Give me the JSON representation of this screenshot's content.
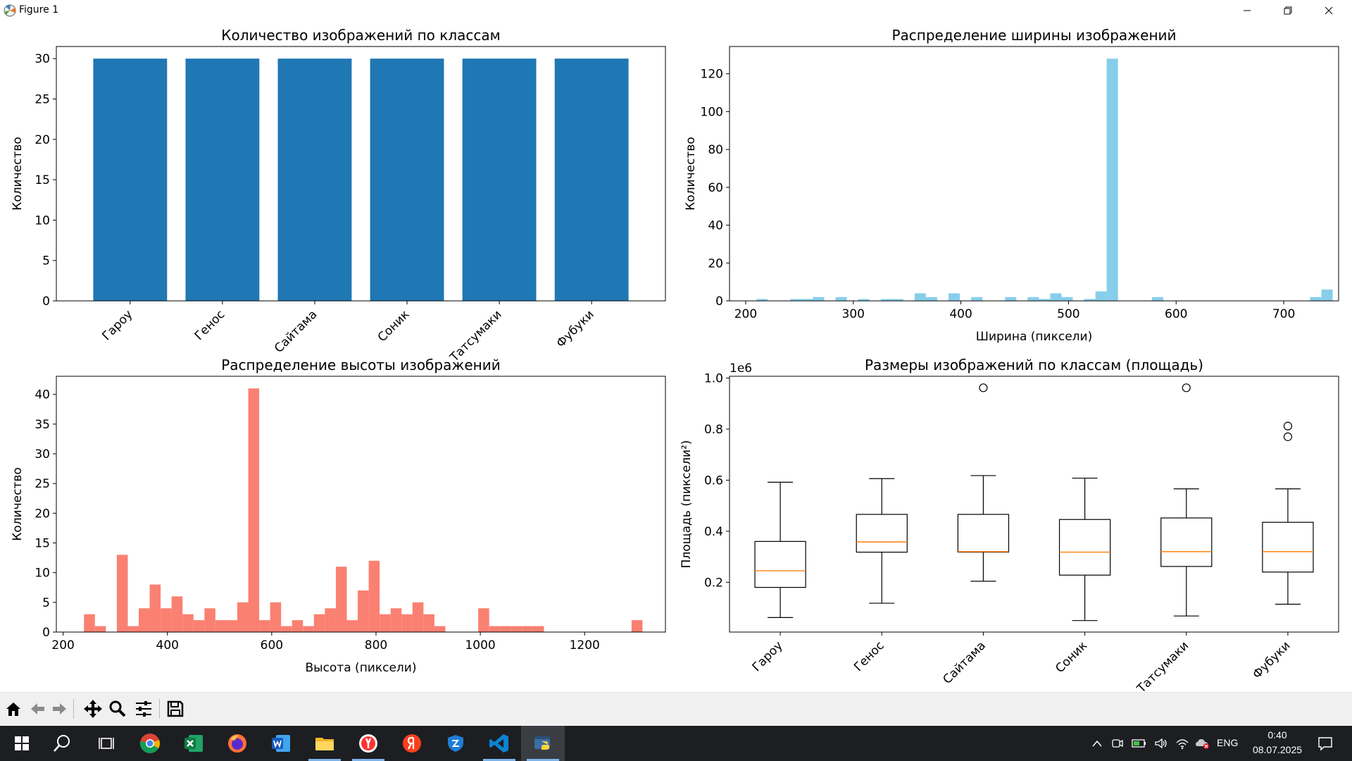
{
  "window": {
    "title": "Figure 1",
    "icons": {
      "app": "matplotlib-icon",
      "minimize": "minimize-icon",
      "maximize": "restore-icon",
      "close": "close-icon"
    }
  },
  "chart_data": [
    {
      "type": "bar",
      "title": "Количество изображений по классам",
      "xlabel": "",
      "ylabel": "Количество",
      "categories": [
        "Гароу",
        "Генос",
        "Сайтама",
        "Соник",
        "Татсумаки",
        "Фубуки"
      ],
      "values": [
        30,
        30,
        30,
        30,
        30,
        30
      ],
      "ylim": [
        0,
        31.5
      ],
      "yticks": [
        0,
        5,
        10,
        15,
        20,
        25,
        30
      ],
      "ytick_labels": [
        "0",
        "5",
        "10",
        "15",
        "20",
        "25",
        "30"
      ],
      "color": "#1f77b4",
      "grid": false
    },
    {
      "type": "bar",
      "title": "Распределение ширины изображений",
      "xlabel": "Ширина (пиксели)",
      "ylabel": "Количество",
      "bin_start": 210,
      "bin_width": 10.5,
      "counts": [
        1,
        0,
        0,
        1,
        1,
        2,
        0,
        2,
        0,
        1,
        0,
        1,
        1,
        0,
        4,
        2,
        0,
        4,
        0,
        2,
        0,
        0,
        2,
        0,
        2,
        1,
        4,
        2,
        0,
        1,
        5,
        128,
        0,
        0,
        0,
        2,
        0,
        0,
        0,
        0,
        0,
        0,
        0,
        0,
        0,
        0,
        0,
        0,
        0,
        2,
        6
      ],
      "xlim": [
        185,
        751
      ],
      "ylim": [
        0,
        134.4
      ],
      "xticks": [
        200,
        300,
        400,
        500,
        600,
        700
      ],
      "xtick_labels": [
        "200",
        "300",
        "400",
        "500",
        "600",
        "700"
      ],
      "yticks": [
        0,
        20,
        40,
        60,
        80,
        100,
        120
      ],
      "ytick_labels": [
        "0",
        "20",
        "40",
        "60",
        "80",
        "100",
        "120"
      ],
      "color": "#87ceeb",
      "grid": false
    },
    {
      "type": "bar",
      "title": "Распределение высоты изображений",
      "xlabel": "Высота (пиксели)",
      "ylabel": "Количество",
      "bin_start": 240,
      "bin_width": 21,
      "counts": [
        3,
        1,
        0,
        13,
        1,
        4,
        8,
        4,
        6,
        3,
        2,
        4,
        2,
        2,
        5,
        41,
        2,
        5,
        1,
        2,
        1,
        3,
        4,
        11,
        2,
        7,
        12,
        3,
        4,
        3,
        5,
        3,
        1,
        0,
        0,
        0,
        4,
        1,
        1,
        1,
        1,
        1,
        0,
        0,
        0,
        0,
        0,
        0,
        0,
        0,
        2
      ],
      "xlim": [
        187,
        1355
      ],
      "ylim": [
        0,
        43.05
      ],
      "xticks": [
        200,
        400,
        600,
        800,
        1000,
        1200
      ],
      "xtick_labels": [
        "200",
        "400",
        "600",
        "800",
        "1000",
        "1200"
      ],
      "yticks": [
        0,
        5,
        10,
        15,
        20,
        25,
        30,
        35,
        40
      ],
      "ytick_labels": [
        "0",
        "5",
        "10",
        "15",
        "20",
        "25",
        "30",
        "35",
        "40"
      ],
      "color": "#fa8072",
      "grid": false
    },
    {
      "type": "box",
      "title": "Размеры изображений по классам (площадь)",
      "xlabel": "",
      "ylabel": "Площадь (пиксели²)",
      "offset_label": "1e6",
      "categories": [
        "Гароу",
        "Генос",
        "Сайтама",
        "Соник",
        "Татсумаки",
        "Фубуки"
      ],
      "boxes": [
        {
          "whislo": 0.062,
          "q1": 0.18,
          "med": 0.245,
          "q3": 0.36,
          "whishi": 0.592,
          "fliers": []
        },
        {
          "whislo": 0.118,
          "q1": 0.318,
          "med": 0.358,
          "q3": 0.466,
          "whishi": 0.606,
          "fliers": []
        },
        {
          "whislo": 0.204,
          "q1": 0.318,
          "med": 0.32,
          "q3": 0.466,
          "whishi": 0.618,
          "fliers": [
            0.962
          ]
        },
        {
          "whislo": 0.05,
          "q1": 0.228,
          "med": 0.318,
          "q3": 0.446,
          "whishi": 0.608,
          "fliers": []
        },
        {
          "whislo": 0.068,
          "q1": 0.262,
          "med": 0.32,
          "q3": 0.452,
          "whishi": 0.566,
          "fliers": [
            0.962
          ]
        },
        {
          "whislo": 0.114,
          "q1": 0.24,
          "med": 0.32,
          "q3": 0.435,
          "whishi": 0.566,
          "fliers": [
            0.77,
            0.812
          ]
        }
      ],
      "ylim": [
        0.005,
        1.007
      ],
      "yticks": [
        0.2,
        0.4,
        0.6,
        0.8,
        1.0
      ],
      "ytick_labels": [
        "0.2",
        "0.4",
        "0.6",
        "0.8",
        "1.0"
      ],
      "median_color": "#ff7f0e",
      "grid": false
    }
  ],
  "toolbar": {
    "buttons": [
      "home-icon",
      "back-icon",
      "forward-icon",
      "pan-icon",
      "zoom-icon",
      "configure-subplots-icon",
      "save-icon"
    ]
  },
  "taskbar": {
    "apps": [
      "windows-start-icon",
      "search-icon",
      "task-view-icon",
      "chrome-icon",
      "excel-icon",
      "firefox-icon",
      "word-icon",
      "file-explorer-icon",
      "yandex-browser-icon",
      "yandex-icon",
      "vpn-shield-icon",
      "vscode-icon",
      "python-icon"
    ],
    "tray_icons": [
      "chevron-up-icon",
      "meet-now-icon",
      "battery-icon",
      "volume-icon",
      "network-icon",
      "onedrive-icon"
    ],
    "language": "ENG",
    "time": "0:40",
    "date": "08.07.2025",
    "notification_icon": "notification-icon"
  }
}
